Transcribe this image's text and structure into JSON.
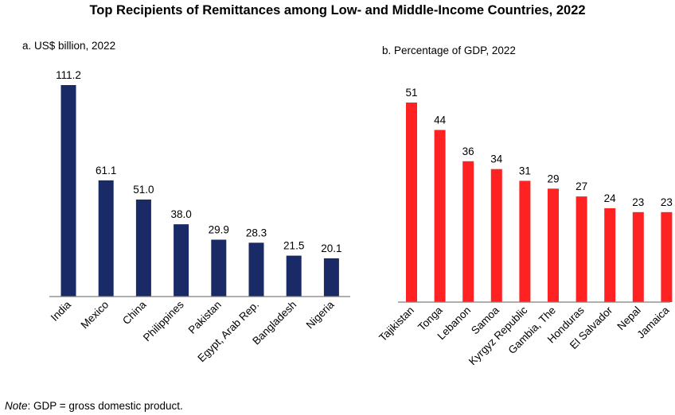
{
  "title": "Top Recipients of Remittances among Low- and Middle-Income Countries, 2022",
  "note": {
    "label": "Note",
    "text": ": GDP = gross domestic product."
  },
  "colors": {
    "navy": "#1a2a66",
    "red": "#ff2222"
  },
  "chart_data": [
    {
      "type": "bar",
      "subtitle": "a. US$ billion, 2022",
      "categories": [
        "India",
        "Mexico",
        "China",
        "Philippines",
        "Pakistan",
        "Egypt, Arab Rep.",
        "Bangladesh",
        "Nigeria"
      ],
      "values": [
        111.2,
        61.1,
        51.0,
        38.0,
        29.9,
        28.3,
        21.5,
        20.1
      ],
      "value_labels": [
        "111.2",
        "61.1",
        "51.0",
        "38.0",
        "29.9",
        "28.3",
        "21.5",
        "20.1"
      ],
      "color": "#1a2a66",
      "ylim": [
        0,
        120
      ],
      "grid": false,
      "axes": "x-axis line only, y-axis hidden"
    },
    {
      "type": "bar",
      "subtitle": "b. Percentage of GDP, 2022",
      "categories": [
        "Tajikistan",
        "Tonga",
        "Lebanon",
        "Samoa",
        "Kyrgyz Republic",
        "Gambia, The",
        "Honduras",
        "El Salvador",
        "Nepal",
        "Jamaica"
      ],
      "values": [
        51,
        44,
        36,
        34,
        31,
        29,
        27,
        24,
        23,
        23
      ],
      "value_labels": [
        "51",
        "44",
        "36",
        "34",
        "31",
        "29",
        "27",
        "24",
        "23",
        "23"
      ],
      "color": "#ff2222",
      "ylim": [
        0,
        55
      ],
      "grid": false,
      "axes": "x-axis line only, y-axis hidden"
    }
  ]
}
